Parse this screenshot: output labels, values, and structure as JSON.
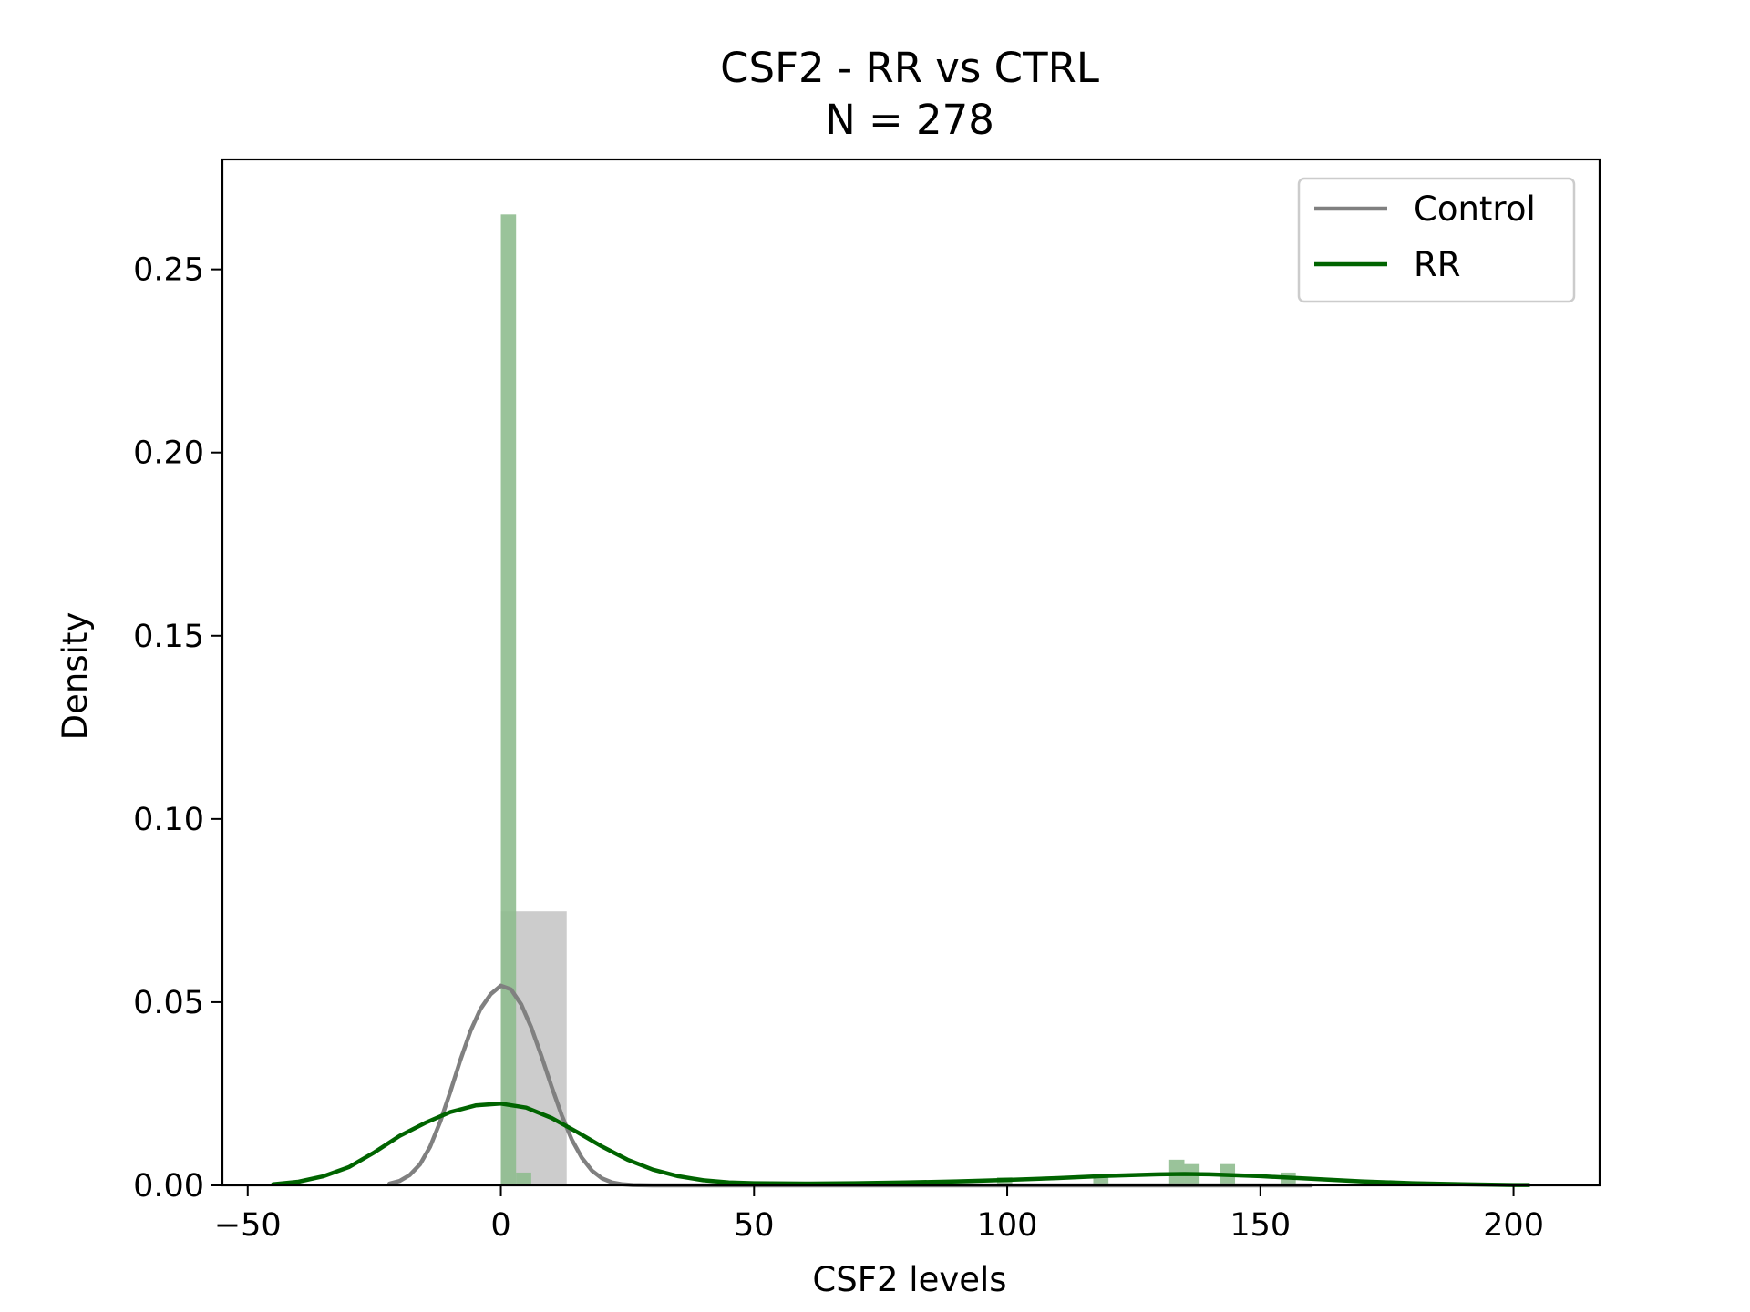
{
  "chart_data": {
    "type": "histogram-kde",
    "title": "CSF2 - RR vs CTRL",
    "subtitle": "N = 278",
    "xlabel": "CSF2 levels",
    "ylabel": "Density",
    "xlim": [
      -55,
      217
    ],
    "ylim": [
      0,
      0.28
    ],
    "xticks": [
      -50,
      0,
      50,
      100,
      150,
      200
    ],
    "xtick_labels": [
      "−50",
      "0",
      "50",
      "100",
      "150",
      "200"
    ],
    "yticks": [
      0,
      0.05,
      0.1,
      0.15,
      0.2,
      0.25
    ],
    "ytick_labels": [
      "0.00",
      "0.05",
      "0.10",
      "0.15",
      "0.20",
      "0.25"
    ],
    "grid": false,
    "legend_position": "top-right",
    "series": [
      {
        "name": "Control",
        "color": "#808080",
        "hist_color": "#c9c9c9",
        "hist": [
          {
            "x0": 0,
            "x1": 13,
            "density": 0.0748
          }
        ],
        "kde": [
          [
            -22,
            0.0005
          ],
          [
            -20,
            0.0012
          ],
          [
            -18,
            0.0028
          ],
          [
            -16,
            0.0057
          ],
          [
            -14,
            0.0105
          ],
          [
            -12,
            0.0173
          ],
          [
            -10,
            0.0255
          ],
          [
            -8,
            0.0342
          ],
          [
            -6,
            0.0421
          ],
          [
            -4,
            0.0482
          ],
          [
            -2,
            0.0522
          ],
          [
            0,
            0.0545
          ],
          [
            2,
            0.0535
          ],
          [
            4,
            0.0494
          ],
          [
            6,
            0.0431
          ],
          [
            8,
            0.0353
          ],
          [
            10,
            0.027
          ],
          [
            12,
            0.0192
          ],
          [
            14,
            0.0125
          ],
          [
            16,
            0.0075
          ],
          [
            18,
            0.004
          ],
          [
            20,
            0.0019
          ],
          [
            22,
            0.0008
          ],
          [
            24,
            0.0003
          ],
          [
            26,
            0.0001
          ],
          [
            30,
            0.0
          ],
          [
            40,
            0.0
          ],
          [
            50,
            0.0
          ],
          [
            60,
            0.0
          ],
          [
            70,
            0.0
          ],
          [
            80,
            0.0
          ],
          [
            100,
            0.0
          ],
          [
            120,
            0.0
          ],
          [
            140,
            0.0
          ],
          [
            160,
            0.0
          ]
        ]
      },
      {
        "name": "RR",
        "color": "#006400",
        "hist_color": "#8fbc8f",
        "hist": [
          {
            "x0": 0,
            "x1": 3,
            "density": 0.265
          },
          {
            "x0": 3,
            "x1": 6,
            "density": 0.0035
          },
          {
            "x0": 98,
            "x1": 101,
            "density": 0.0022
          },
          {
            "x0": 117,
            "x1": 120,
            "density": 0.0032
          },
          {
            "x0": 132,
            "x1": 135,
            "density": 0.007
          },
          {
            "x0": 135,
            "x1": 138,
            "density": 0.0058
          },
          {
            "x0": 142,
            "x1": 145,
            "density": 0.0058
          },
          {
            "x0": 154,
            "x1": 157,
            "density": 0.0035
          }
        ],
        "kde": [
          [
            -45,
            0.0003
          ],
          [
            -40,
            0.001
          ],
          [
            -35,
            0.0025
          ],
          [
            -30,
            0.005
          ],
          [
            -25,
            0.009
          ],
          [
            -20,
            0.0135
          ],
          [
            -15,
            0.017
          ],
          [
            -10,
            0.02
          ],
          [
            -5,
            0.0218
          ],
          [
            0,
            0.0223
          ],
          [
            5,
            0.0212
          ],
          [
            10,
            0.0184
          ],
          [
            15,
            0.0146
          ],
          [
            20,
            0.0106
          ],
          [
            25,
            0.007
          ],
          [
            30,
            0.0043
          ],
          [
            35,
            0.0025
          ],
          [
            40,
            0.0014
          ],
          [
            45,
            0.0008
          ],
          [
            50,
            0.0006
          ],
          [
            60,
            0.0005
          ],
          [
            70,
            0.0006
          ],
          [
            80,
            0.0008
          ],
          [
            90,
            0.0011
          ],
          [
            100,
            0.0015
          ],
          [
            110,
            0.002
          ],
          [
            120,
            0.0026
          ],
          [
            130,
            0.003
          ],
          [
            135,
            0.0031
          ],
          [
            140,
            0.003
          ],
          [
            150,
            0.0025
          ],
          [
            160,
            0.0018
          ],
          [
            170,
            0.0011
          ],
          [
            180,
            0.0006
          ],
          [
            190,
            0.0003
          ],
          [
            200,
            0.0001
          ],
          [
            203,
            0.0001
          ]
        ]
      }
    ]
  }
}
